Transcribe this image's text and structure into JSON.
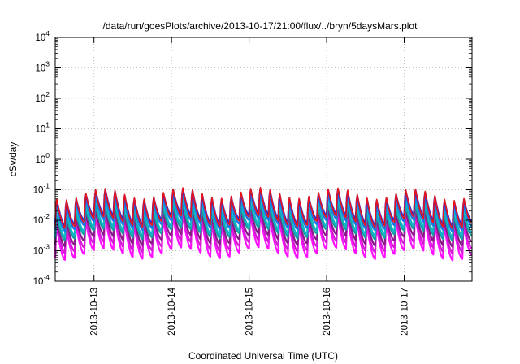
{
  "chart_data": {
    "type": "line",
    "title": "/data/run/goesPlots/archive/2013-10-17/21:00/flux/../bryn/5daysMars.plot",
    "xlabel": "Coordinated Universal Time (UTC)",
    "ylabel": "cSv/day",
    "yscale": "log",
    "ylim": [
      0.0001,
      10000
    ],
    "y_ticks": [
      {
        "base": "10",
        "exp": "-4"
      },
      {
        "base": "10",
        "exp": "-3"
      },
      {
        "base": "10",
        "exp": "-2"
      },
      {
        "base": "10",
        "exp": "-1"
      },
      {
        "base": "10",
        "exp": "0"
      },
      {
        "base": "10",
        "exp": "1"
      },
      {
        "base": "10",
        "exp": "2"
      },
      {
        "base": "10",
        "exp": "3"
      },
      {
        "base": "10",
        "exp": "4"
      }
    ],
    "xlim": [
      "2013-10-12 12:00",
      "2013-10-17 21:00"
    ],
    "x_ticks": [
      "2013-10-13",
      "2013-10-14",
      "2013-10-15",
      "2013-10-16",
      "2013-10-17"
    ],
    "grid": true,
    "legend": "none",
    "series": [
      {
        "color": "#e8141c",
        "peak": 0.1,
        "trough": 0.01
      },
      {
        "color": "#2a2ad6",
        "peak": 0.09,
        "trough": 0.012
      },
      {
        "color": "#1a73e8",
        "peak": 0.07,
        "trough": 0.008
      },
      {
        "color": "#12b6c8",
        "peak": 0.045,
        "trough": 0.005
      },
      {
        "color": "#10a0a0",
        "peak": 0.03,
        "trough": 0.004
      },
      {
        "color": "#8a1a8a",
        "peak": 0.02,
        "trough": 0.0025
      },
      {
        "color": "#d41ad4",
        "peak": 0.015,
        "trough": 0.0015
      },
      {
        "color": "#ff10ff",
        "peak": 0.012,
        "trough": 0.0009
      }
    ],
    "profile": {
      "period_hours": 3,
      "description_values": "each series repeats a 3-hour cycle: sharp rise to peak, then decay to trough; daily modulation lowers values near midday UTC"
    }
  }
}
